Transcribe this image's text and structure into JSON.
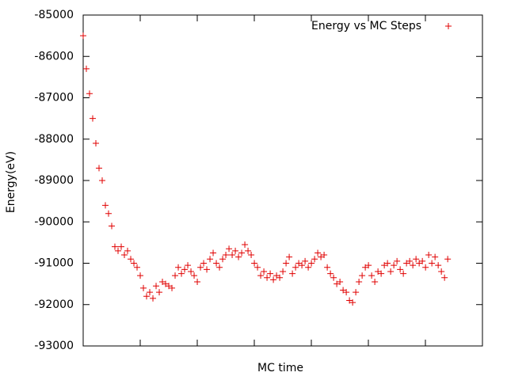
{
  "chart_data": {
    "type": "scatter",
    "xlabel": "MC time",
    "ylabel": "Energy(eV)",
    "ylim": [
      -93000,
      -85000
    ],
    "yticks": [
      -93000,
      -92000,
      -91000,
      -90000,
      -89000,
      -88000,
      -87000,
      -86000,
      -85000
    ],
    "legend": "top-right",
    "series": [
      {
        "name": "Energy vs MC Steps",
        "color": "#e00000",
        "values": [
          -85500,
          -86300,
          -86900,
          -87500,
          -88100,
          -88700,
          -89000,
          -89600,
          -89800,
          -90100,
          -90600,
          -90700,
          -90600,
          -90800,
          -90700,
          -90900,
          -91000,
          -91100,
          -91300,
          -91600,
          -91800,
          -91700,
          -91850,
          -91550,
          -91700,
          -91450,
          -91500,
          -91550,
          -91600,
          -91300,
          -91100,
          -91250,
          -91150,
          -91050,
          -91200,
          -91300,
          -91450,
          -91100,
          -91000,
          -91150,
          -90900,
          -90750,
          -91000,
          -91100,
          -90900,
          -90800,
          -90650,
          -90800,
          -90700,
          -90850,
          -90750,
          -90550,
          -90700,
          -90800,
          -91000,
          -91100,
          -91300,
          -91200,
          -91350,
          -91250,
          -91400,
          -91300,
          -91350,
          -91200,
          -91000,
          -90850,
          -91250,
          -91100,
          -91000,
          -91050,
          -90950,
          -91100,
          -91000,
          -90900,
          -90750,
          -90850,
          -90800,
          -91100,
          -91250,
          -91350,
          -91500,
          -91450,
          -91650,
          -91700,
          -91900,
          -91950,
          -91700,
          -91450,
          -91300,
          -91100,
          -91050,
          -91300,
          -91450,
          -91200,
          -91250,
          -91050,
          -91000,
          -91200,
          -91050,
          -90950,
          -91150,
          -91250,
          -91000,
          -90950,
          -91050,
          -90900,
          -91000,
          -90950,
          -91100,
          -90800,
          -91000,
          -90850,
          -91050,
          -91200,
          -91350,
          -90900
        ]
      }
    ]
  }
}
